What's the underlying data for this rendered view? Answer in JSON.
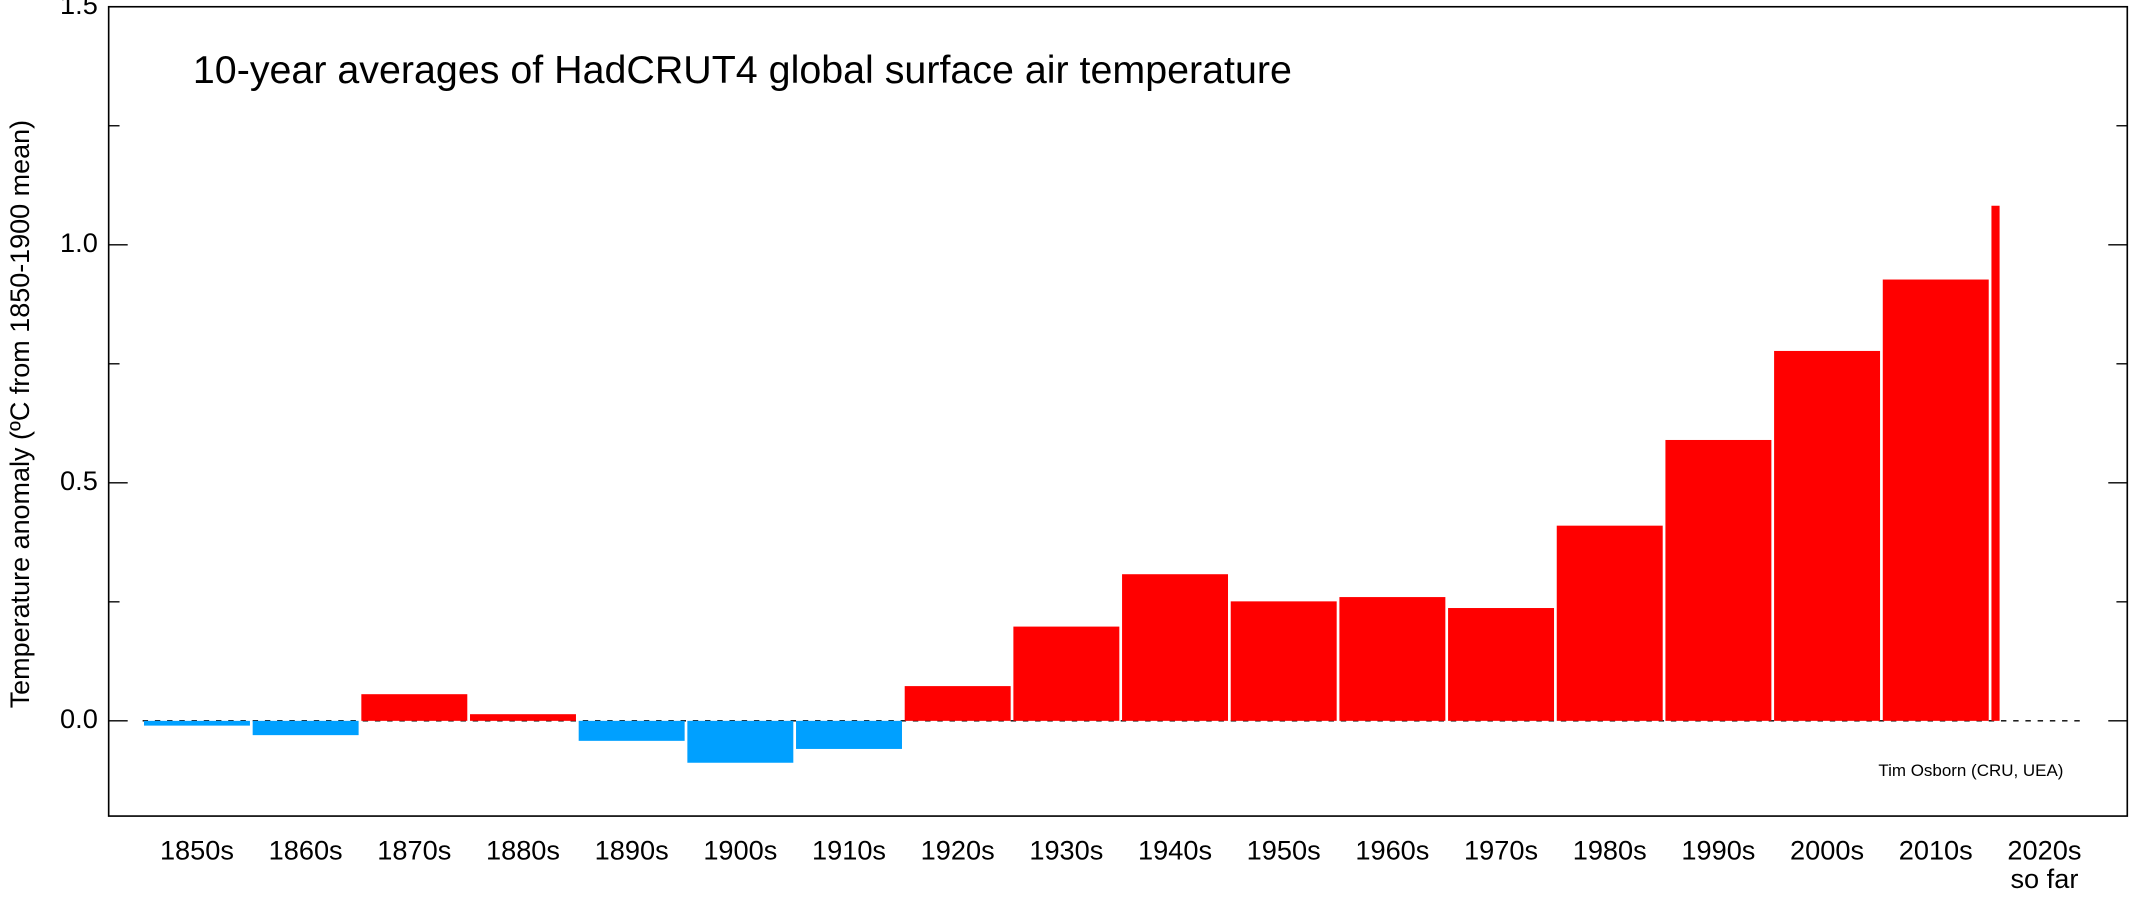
{
  "chart_data": {
    "type": "bar",
    "title": "10-year averages of HadCRUT4 global surface air temperature",
    "ylabel": "Temperature anomaly (ºC from 1850-1900 mean)",
    "annotation": "Tim Osborn (CRU, UEA)",
    "categories": [
      "1850s",
      "1860s",
      "1870s",
      "1880s",
      "1890s",
      "1900s",
      "1910s",
      "1920s",
      "1930s",
      "1940s",
      "1950s",
      "1960s",
      "1970s",
      "1980s",
      "1990s",
      "2000s",
      "2010s",
      "2020s"
    ],
    "last_category_note": "so far",
    "values": [
      -0.01,
      -0.03,
      0.056,
      0.014,
      -0.042,
      -0.088,
      -0.059,
      0.073,
      0.198,
      0.308,
      0.251,
      0.26,
      0.237,
      0.41,
      0.59,
      0.777,
      0.927,
      1.082
    ],
    "positive_color": "#ff0000",
    "negative_color": "#00a0ff",
    "ylim": [
      -0.2,
      1.5
    ],
    "yticks": [
      {
        "value": 0,
        "label": "0.0"
      },
      {
        "value": 0.5,
        "label": "0.5"
      },
      {
        "value": 1,
        "label": "1.0"
      },
      {
        "value": 1.5,
        "label": "1.5"
      }
    ],
    "yminorticks": [
      0.25,
      0.75,
      1.25
    ]
  }
}
